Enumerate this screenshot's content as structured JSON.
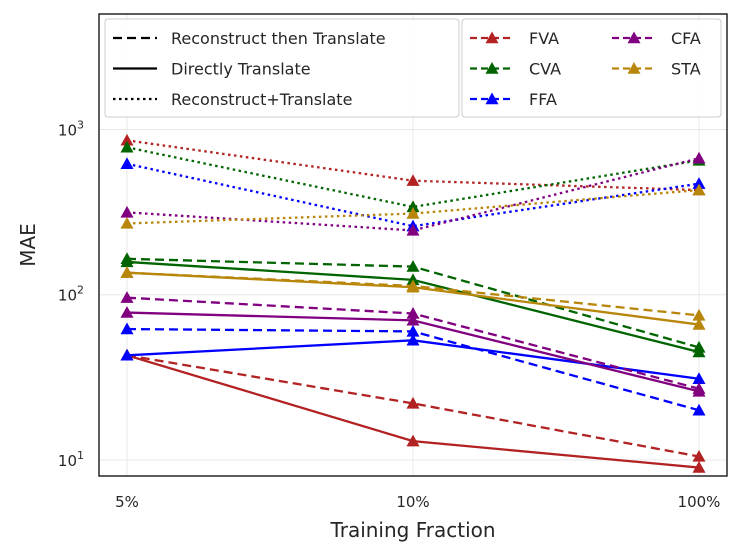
{
  "chart_data": {
    "type": "line",
    "xlabel": "Training Fraction",
    "ylabel": "MAE",
    "categories": [
      "5%",
      "10%",
      "100%"
    ],
    "yscale": "log",
    "ylim": [
      8,
      5000
    ],
    "ytick_labels": [
      {
        "value": 10,
        "base": "10",
        "exp": "1"
      },
      {
        "value": 100,
        "base": "10",
        "exp": "2"
      },
      {
        "value": 1000,
        "base": "10",
        "exp": "3"
      }
    ],
    "grid": true,
    "linestyle_legend": [
      {
        "label": "Reconstruct then Translate",
        "style": "dashed"
      },
      {
        "label": "Directly Translate",
        "style": "solid"
      },
      {
        "label": "Reconstruct+Translate",
        "style": "dotted"
      }
    ],
    "legend_placement": "top",
    "series_legend": [
      {
        "label": "FVA",
        "color": "#b22222"
      },
      {
        "label": "CFA",
        "color": "#800080"
      },
      {
        "label": "CVA",
        "color": "#006400"
      },
      {
        "label": "STA",
        "color": "#b8860b"
      },
      {
        "label": "FFA",
        "color": "#0000ff"
      }
    ],
    "series": [
      {
        "name": "FVA",
        "style": "dashed",
        "color": "#b22222",
        "values": [
          43,
          22,
          10.5
        ]
      },
      {
        "name": "FVA",
        "style": "solid",
        "color": "#b22222",
        "values": [
          43,
          13,
          9
        ]
      },
      {
        "name": "FVA",
        "style": "dotted",
        "color": "#b22222",
        "values": [
          860,
          490,
          430
        ]
      },
      {
        "name": "CVA",
        "style": "dashed",
        "color": "#006400",
        "values": [
          165,
          148,
          48
        ]
      },
      {
        "name": "CVA",
        "style": "solid",
        "color": "#006400",
        "values": [
          158,
          123,
          45
        ]
      },
      {
        "name": "CVA",
        "style": "dotted",
        "color": "#006400",
        "values": [
          780,
          340,
          650
        ]
      },
      {
        "name": "FFA",
        "style": "dashed",
        "color": "#0000ff",
        "values": [
          62,
          60,
          20
        ]
      },
      {
        "name": "FFA",
        "style": "solid",
        "color": "#0000ff",
        "values": [
          43,
          53,
          31
        ]
      },
      {
        "name": "FFA",
        "style": "dotted",
        "color": "#0000ff",
        "values": [
          620,
          260,
          470
        ]
      },
      {
        "name": "CFA",
        "style": "dashed",
        "color": "#800080",
        "values": [
          96,
          77,
          27
        ]
      },
      {
        "name": "CFA",
        "style": "solid",
        "color": "#800080",
        "values": [
          78,
          70,
          26
        ]
      },
      {
        "name": "CFA",
        "style": "dotted",
        "color": "#800080",
        "values": [
          315,
          245,
          670
        ]
      },
      {
        "name": "STA",
        "style": "dashed",
        "color": "#b8860b",
        "values": [
          136,
          113,
          75
        ]
      },
      {
        "name": "STA",
        "style": "solid",
        "color": "#b8860b",
        "values": [
          136,
          111,
          66
        ]
      },
      {
        "name": "STA",
        "style": "dotted",
        "color": "#b8860b",
        "values": [
          270,
          310,
          430
        ]
      }
    ]
  }
}
